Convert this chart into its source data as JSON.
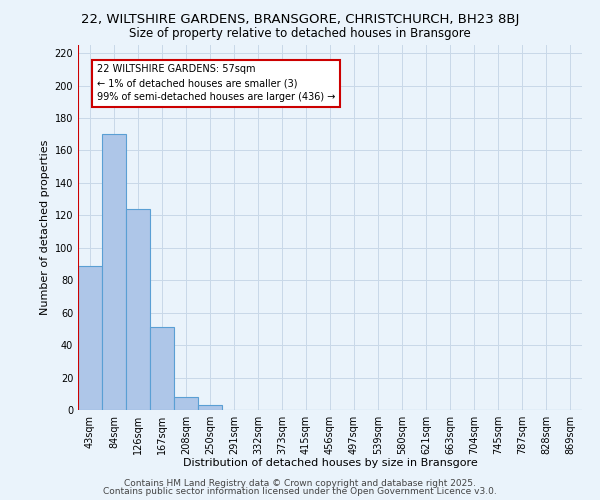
{
  "title1": "22, WILTSHIRE GARDENS, BRANSGORE, CHRISTCHURCH, BH23 8BJ",
  "title2": "Size of property relative to detached houses in Bransgore",
  "xlabel": "Distribution of detached houses by size in Bransgore",
  "ylabel": "Number of detached properties",
  "categories": [
    "43sqm",
    "84sqm",
    "126sqm",
    "167sqm",
    "208sqm",
    "250sqm",
    "291sqm",
    "332sqm",
    "373sqm",
    "415sqm",
    "456sqm",
    "497sqm",
    "539sqm",
    "580sqm",
    "621sqm",
    "663sqm",
    "704sqm",
    "745sqm",
    "787sqm",
    "828sqm",
    "869sqm"
  ],
  "values": [
    89,
    170,
    124,
    51,
    8,
    3,
    0,
    0,
    0,
    0,
    0,
    0,
    0,
    0,
    0,
    0,
    0,
    0,
    0,
    0,
    0
  ],
  "bar_color": "#aec6e8",
  "bar_edge_color": "#5a9fd4",
  "grid_color": "#c8d8e8",
  "background_color": "#eaf3fb",
  "vline_color": "#cc0000",
  "annotation_text": "22 WILTSHIRE GARDENS: 57sqm\n← 1% of detached houses are smaller (3)\n99% of semi-detached houses are larger (436) →",
  "annotation_box_color": "#ffffff",
  "annotation_box_edge": "#cc0000",
  "ylim": [
    0,
    225
  ],
  "yticks": [
    0,
    20,
    40,
    60,
    80,
    100,
    120,
    140,
    160,
    180,
    200,
    220
  ],
  "footer1": "Contains HM Land Registry data © Crown copyright and database right 2025.",
  "footer2": "Contains public sector information licensed under the Open Government Licence v3.0.",
  "title1_fontsize": 9.5,
  "title2_fontsize": 8.5,
  "xlabel_fontsize": 8,
  "ylabel_fontsize": 8,
  "tick_fontsize": 7,
  "footer_fontsize": 6.5
}
